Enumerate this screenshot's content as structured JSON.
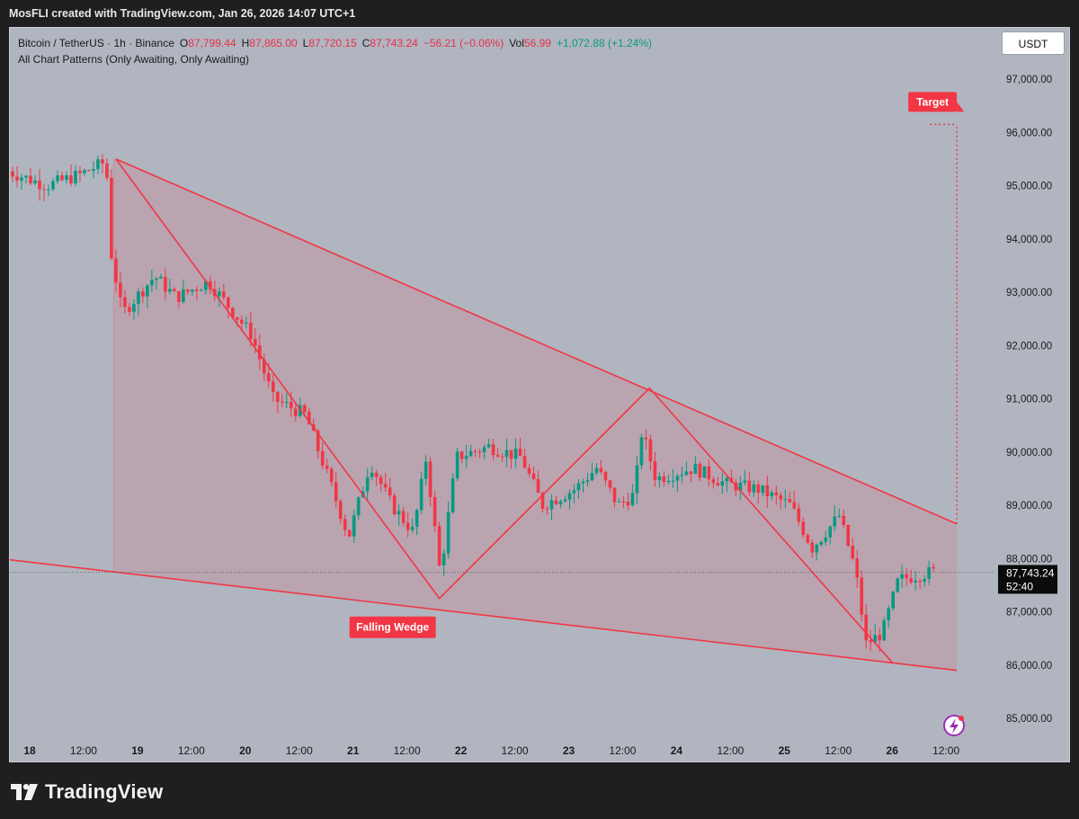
{
  "header": {
    "caption": "MosFLI created with TradingView.com, Jan 26, 2026 14:07 UTC+1"
  },
  "legend": {
    "symbol": "Bitcoin / TetherUS · 1h · Binance",
    "o_label": "O",
    "o_value": "87,799.44",
    "h_label": "H",
    "h_value": "87,865.00",
    "l_label": "L",
    "l_value": "87,720.15",
    "c_label": "C",
    "c_value": "87,743.24",
    "change": "−56.21 (−0.06%)",
    "vol_label": "Vol",
    "vol_value": "56.99",
    "vol_change": "+1,072.88 (+1.24%)",
    "indicator": "All Chart Patterns (Only Awaiting, Only Awaiting)"
  },
  "currency_button": "USDT",
  "current_price": {
    "value": "87,743.24",
    "countdown": "52:40"
  },
  "annotations": {
    "pattern_label": "Falling Wedge",
    "target_label": "Target"
  },
  "footer": {
    "brand": "TradingView"
  },
  "colors": {
    "background": "#b1b5c0",
    "wedge": "#f23645",
    "wedge_fill": "rgba(242,54,69,0.13)",
    "up_candle": "#089981",
    "down_candle": "#f23645"
  },
  "chart_data": {
    "type": "candlestick",
    "title": "Bitcoin / TetherUS · 1h · Binance",
    "y_axis": {
      "ticks": [
        85000,
        86000,
        87000,
        88000,
        89000,
        90000,
        91000,
        92000,
        93000,
        94000,
        95000,
        96000,
        97000
      ],
      "tick_labels": [
        "85,000.00",
        "86,000.00",
        "87,000.00",
        "88,000.00",
        "89,000.00",
        "90,000.00",
        "91,000.00",
        "92,000.00",
        "93,000.00",
        "94,000.00",
        "95,000.00",
        "96,000.00",
        "97,000.00"
      ],
      "range": [
        84500,
        97800
      ],
      "position": "right"
    },
    "x_axis": {
      "ticks": [
        "18",
        "12:00",
        "19",
        "12:00",
        "20",
        "12:00",
        "21",
        "12:00",
        "22",
        "12:00",
        "23",
        "12:00",
        "24",
        "12:00",
        "25",
        "12:00",
        "26",
        "12:00"
      ],
      "day_ticks": [
        "18",
        "19",
        "20",
        "21",
        "22",
        "23",
        "24",
        "25",
        "26"
      ],
      "range_days": [
        17.8,
        26.6
      ]
    },
    "price_path": [
      [
        17.8,
        95300
      ],
      [
        18.2,
        95000
      ],
      [
        18.5,
        95200
      ],
      [
        18.75,
        95450
      ],
      [
        18.8,
        93700
      ],
      [
        18.9,
        92600
      ],
      [
        19.2,
        93300
      ],
      [
        19.4,
        92900
      ],
      [
        19.7,
        93200
      ],
      [
        20.1,
        92200
      ],
      [
        20.3,
        91000
      ],
      [
        20.6,
        90700
      ],
      [
        20.85,
        89300
      ],
      [
        21.0,
        88400
      ],
      [
        21.2,
        89800
      ],
      [
        21.4,
        89000
      ],
      [
        21.6,
        88500
      ],
      [
        21.72,
        89900
      ],
      [
        21.85,
        87700
      ],
      [
        22.0,
        89900
      ],
      [
        22.3,
        90100
      ],
      [
        22.6,
        89900
      ],
      [
        22.8,
        89000
      ],
      [
        23.1,
        89300
      ],
      [
        23.3,
        89700
      ],
      [
        23.5,
        89000
      ],
      [
        23.65,
        89200
      ],
      [
        23.72,
        90400
      ],
      [
        23.85,
        89500
      ],
      [
        24.2,
        89700
      ],
      [
        24.5,
        89400
      ],
      [
        24.8,
        89300
      ],
      [
        25.1,
        89000
      ],
      [
        25.3,
        88200
      ],
      [
        25.55,
        88800
      ],
      [
        25.7,
        87800
      ],
      [
        25.8,
        86400
      ],
      [
        25.95,
        86600
      ],
      [
        26.1,
        87600
      ],
      [
        26.4,
        87743
      ]
    ],
    "current_price": 87743.24,
    "pattern": {
      "name": "Falling Wedge",
      "upper_line": [
        [
          18.8,
          95500
        ],
        [
          26.6,
          88650
        ]
      ],
      "lower_line": [
        [
          17.8,
          88000
        ],
        [
          26.6,
          85900
        ]
      ],
      "zigzag": [
        [
          18.8,
          95500
        ],
        [
          21.8,
          87250
        ],
        [
          23.75,
          91200
        ],
        [
          26.0,
          86050
        ]
      ],
      "target_price": 96150,
      "target_x": 26.6
    }
  }
}
